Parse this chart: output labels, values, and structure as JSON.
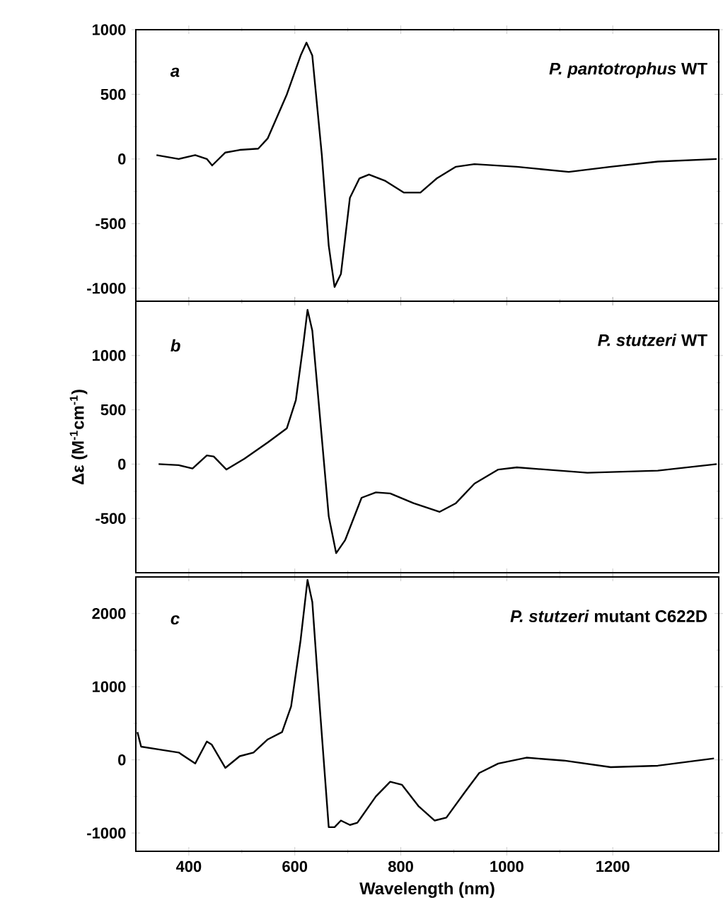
{
  "chart_data": [
    {
      "type": "line",
      "color": "#000000",
      "xlim": [
        300,
        1400
      ],
      "xticks": [
        400,
        600,
        800,
        1000,
        1200
      ],
      "ylim": [
        -1100,
        1000
      ],
      "yticks": [
        -1000,
        -500,
        0,
        500,
        1000
      ],
      "tick_labels": "y",
      "annotations": [
        "a",
        "*P. pantotrophus* WT"
      ],
      "x": [
        339,
        381,
        412,
        434,
        444,
        469,
        496,
        531,
        549,
        585,
        611,
        622,
        633,
        651,
        664,
        675,
        687,
        704,
        722,
        740,
        771,
        806,
        837,
        868,
        904,
        939,
        1019,
        1117,
        1196,
        1285,
        1396
      ],
      "values": [
        30,
        0,
        30,
        0,
        -50,
        50,
        70,
        80,
        160,
        500,
        800,
        900,
        800,
        30,
        -670,
        -990,
        -890,
        -300,
        -150,
        -120,
        -170,
        -260,
        -260,
        -150,
        -60,
        -40,
        -60,
        -100,
        -60,
        -20,
        0
      ]
    },
    {
      "type": "line",
      "color": "#000000",
      "xlim": [
        300,
        1400
      ],
      "xticks": [
        400,
        600,
        800,
        1000,
        1200
      ],
      "ylim": [
        -1000,
        1500
      ],
      "yticks": [
        -500,
        0,
        500,
        1000
      ],
      "tick_labels": "y",
      "ylabel": "Δε (M$^{-1}$cm$^{-1}$)",
      "annotations": [
        "b",
        "*P. stutzeri* WT"
      ],
      "x": [
        343,
        381,
        407,
        434,
        447,
        471,
        505,
        549,
        585,
        602,
        616,
        624,
        633,
        651,
        664,
        678,
        695,
        726,
        753,
        780,
        824,
        873,
        904,
        939,
        984,
        1019,
        1152,
        1285,
        1396
      ],
      "values": [
        0,
        -10,
        -40,
        80,
        70,
        -50,
        50,
        200,
        330,
        590,
        1100,
        1420,
        1230,
        240,
        -480,
        -820,
        -700,
        -310,
        -260,
        -270,
        -360,
        -440,
        -360,
        -180,
        -50,
        -30,
        -80,
        -60,
        0
      ]
    },
    {
      "type": "line",
      "color": "#000000",
      "xlim": [
        300,
        1400
      ],
      "xticks": [
        400,
        600,
        800,
        1000,
        1200
      ],
      "ylim": [
        -1250,
        2500
      ],
      "yticks": [
        -1000,
        0,
        1000,
        2000
      ],
      "xlabel": "Wavelength (nm)",
      "annotations": [
        "c",
        "*P. stutzeri* mutant C622D"
      ],
      "x": [
        303,
        310,
        345,
        381,
        412,
        434,
        443,
        469,
        496,
        522,
        549,
        576,
        593,
        611,
        624,
        633,
        647,
        664,
        675,
        687,
        704,
        718,
        753,
        780,
        802,
        833,
        864,
        886,
        921,
        948,
        984,
        1037,
        1108,
        1196,
        1285,
        1391
      ],
      "values": [
        380,
        180,
        140,
        100,
        -50,
        250,
        210,
        -110,
        50,
        100,
        280,
        380,
        730,
        1640,
        2460,
        2160,
        730,
        -920,
        -920,
        -830,
        -890,
        -860,
        -500,
        -300,
        -340,
        -630,
        -830,
        -790,
        -440,
        -180,
        -50,
        30,
        -10,
        -100,
        -80,
        20
      ]
    }
  ]
}
